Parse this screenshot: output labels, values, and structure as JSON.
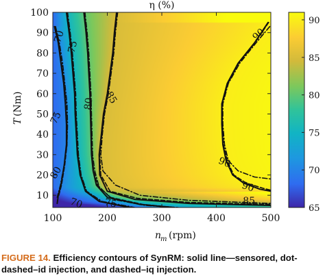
{
  "chart_data": {
    "type": "heatmap",
    "title": "η (%)",
    "xlabel": "n_m (rpm)",
    "ylabel": "T (Nm)",
    "xlim": [
      100,
      500
    ],
    "ylim": [
      4,
      100
    ],
    "x_ticks": [
      100,
      200,
      300,
      400,
      500
    ],
    "y_ticks": [
      10,
      20,
      30,
      40,
      50,
      60,
      70,
      80,
      90,
      100
    ],
    "colorbar": {
      "range": [
        65,
        91
      ],
      "ticks": [
        65,
        70,
        75,
        80,
        85,
        90
      ],
      "tick_labels": [
        "65",
        "70",
        "75",
        "80",
        "85",
        "90"
      ],
      "colormap": "parula"
    },
    "contour_levels": [
      70,
      75,
      80,
      85,
      90
    ],
    "series": [
      {
        "style": "solid",
        "contours": [
          {
            "level": 70,
            "points": [
              [
                103,
                93
              ],
              [
                110,
                85
              ],
              [
                115,
                75
              ],
              [
                120,
                65
              ],
              [
                123,
                55
              ],
              [
                125,
                45
              ],
              [
                125,
                35
              ],
              [
                121,
                25
              ],
              [
                115,
                15
              ],
              [
                110,
                10
              ],
              [
                108,
                6
              ]
            ]
          },
          {
            "level": 75,
            "points": [
              [
                125,
                100
              ],
              [
                130,
                90
              ],
              [
                134,
                80
              ],
              [
                137,
                70
              ],
              [
                140,
                60
              ],
              [
                141,
                50
              ],
              [
                143,
                40
              ],
              [
                145,
                30
              ],
              [
                150,
                20
              ],
              [
                160,
                12
              ],
              [
                185,
                7
              ],
              [
                240,
                4
              ]
            ]
          },
          {
            "level": 80,
            "points": [
              [
                157,
                100
              ],
              [
                161,
                90
              ],
              [
                164,
                80
              ],
              [
                166,
                70
              ],
              [
                168,
                60
              ],
              [
                169,
                50
              ],
              [
                170,
                40
              ],
              [
                171,
                30
              ],
              [
                174,
                22
              ],
              [
                180,
                15
              ],
              [
                200,
                9
              ],
              [
                260,
                5.5
              ],
              [
                320,
                4
              ]
            ]
          },
          {
            "level": 85,
            "points": [
              [
                217,
                100
              ],
              [
                213,
                90
              ],
              [
                210,
                80
              ],
              [
                205,
                70
              ],
              [
                200,
                60
              ],
              [
                193,
                50
              ],
              [
                189,
                40
              ],
              [
                185,
                30
              ],
              [
                186,
                20
              ],
              [
                200,
                12
              ],
              [
                250,
                8
              ],
              [
                350,
                6
              ],
              [
                500,
                5
              ]
            ]
          },
          {
            "level": 90,
            "points": [
              [
                495,
                95
              ],
              [
                470,
                85
              ],
              [
                440,
                75
              ],
              [
                420,
                65
              ],
              [
                410,
                55
              ],
              [
                410,
                45
              ],
              [
                412,
                35
              ],
              [
                418,
                27
              ],
              [
                430,
                20
              ],
              [
                450,
                16
              ],
              [
                480,
                13
              ],
              [
                500,
                12
              ]
            ]
          }
        ]
      },
      {
        "style": "dot-dashed",
        "contours": [
          {
            "level": 70,
            "points": [
              [
                105,
                93
              ],
              [
                112,
                85
              ],
              [
                118,
                75
              ],
              [
                122,
                65
              ],
              [
                126,
                55
              ],
              [
                127,
                45
              ],
              [
                126,
                35
              ],
              [
                121,
                25
              ],
              [
                114,
                15
              ],
              [
                108,
                9
              ]
            ]
          },
          {
            "level": 75,
            "points": [
              [
                127,
                100
              ],
              [
                132,
                90
              ],
              [
                136,
                80
              ],
              [
                139,
                70
              ],
              [
                142,
                60
              ],
              [
                143,
                50
              ],
              [
                145,
                40
              ],
              [
                147,
                30
              ],
              [
                152,
                20
              ],
              [
                162,
                12
              ],
              [
                190,
                7
              ],
              [
                250,
                4
              ]
            ]
          },
          {
            "level": 80,
            "points": [
              [
                159,
                100
              ],
              [
                163,
                90
              ],
              [
                166,
                80
              ],
              [
                168,
                70
              ],
              [
                170,
                60
              ],
              [
                171,
                50
              ],
              [
                172,
                40
              ],
              [
                173,
                30
              ],
              [
                177,
                22
              ],
              [
                185,
                14
              ],
              [
                210,
                8
              ],
              [
                270,
                5
              ],
              [
                330,
                4
              ]
            ]
          },
          {
            "level": 85,
            "points": [
              [
                219,
                100
              ],
              [
                215,
                90
              ],
              [
                212,
                80
              ],
              [
                207,
                70
              ],
              [
                202,
                60
              ],
              [
                195,
                50
              ],
              [
                191,
                40
              ],
              [
                188,
                30
              ],
              [
                192,
                22
              ],
              [
                215,
                15
              ],
              [
                260,
                10
              ],
              [
                350,
                7.5
              ],
              [
                500,
                6
              ]
            ]
          },
          {
            "level": 90,
            "points": [
              [
                498,
                93
              ],
              [
                473,
                85
              ],
              [
                443,
                75
              ],
              [
                422,
                65
              ],
              [
                412,
                55
              ],
              [
                412,
                45
              ],
              [
                415,
                35
              ],
              [
                422,
                27
              ],
              [
                440,
                22
              ],
              [
                470,
                19
              ],
              [
                500,
                18
              ]
            ]
          }
        ]
      },
      {
        "style": "dashed",
        "contours": [
          {
            "level": 70,
            "points": [
              [
                104,
                93
              ],
              [
                111,
                85
              ],
              [
                116,
                75
              ],
              [
                121,
                65
              ],
              [
                124,
                55
              ],
              [
                126,
                45
              ],
              [
                126,
                35
              ],
              [
                122,
                25
              ],
              [
                116,
                15
              ],
              [
                110,
                9
              ]
            ]
          },
          {
            "level": 75,
            "points": [
              [
                126,
                100
              ],
              [
                131,
                90
              ],
              [
                135,
                80
              ],
              [
                138,
                70
              ],
              [
                141,
                60
              ],
              [
                142,
                50
              ],
              [
                144,
                40
              ],
              [
                146,
                30
              ],
              [
                151,
                20
              ],
              [
                161,
                12
              ],
              [
                187,
                7
              ],
              [
                245,
                4
              ]
            ]
          },
          {
            "level": 80,
            "points": [
              [
                158,
                100
              ],
              [
                162,
                90
              ],
              [
                165,
                80
              ],
              [
                167,
                70
              ],
              [
                169,
                60
              ],
              [
                170,
                50
              ],
              [
                171,
                40
              ],
              [
                172,
                30
              ],
              [
                175,
                22
              ],
              [
                182,
                15
              ],
              [
                205,
                9
              ],
              [
                265,
                5.5
              ],
              [
                325,
                4
              ]
            ]
          },
          {
            "level": 85,
            "points": [
              [
                218,
                100
              ],
              [
                214,
                90
              ],
              [
                211,
                80
              ],
              [
                206,
                70
              ],
              [
                201,
                60
              ],
              [
                194,
                50
              ],
              [
                190,
                40
              ],
              [
                186,
                30
              ],
              [
                188,
                20
              ],
              [
                205,
                12
              ],
              [
                255,
                8.5
              ],
              [
                350,
                6.5
              ],
              [
                500,
                5.5
              ]
            ]
          },
          {
            "level": 90,
            "points": [
              [
                496,
                95
              ],
              [
                471,
                85
              ],
              [
                441,
                75
              ],
              [
                421,
                65
              ],
              [
                411,
                55
              ],
              [
                411,
                45
              ],
              [
                413,
                35
              ],
              [
                420,
                27
              ],
              [
                432,
                20
              ],
              [
                455,
                16
              ],
              [
                485,
                13.5
              ],
              [
                500,
                12.5
              ]
            ]
          }
        ]
      }
    ],
    "contour_labels": [
      {
        "text": "70",
        "x": 112,
        "y": 88,
        "angle": -72
      },
      {
        "text": "75",
        "x": 106,
        "y": 48,
        "angle": -65
      },
      {
        "text": "80",
        "x": 106,
        "y": 21,
        "angle": -60
      },
      {
        "text": "75",
        "x": 137,
        "y": 83,
        "angle": -76
      },
      {
        "text": "80",
        "x": 166,
        "y": 55,
        "angle": -82
      },
      {
        "text": "85",
        "x": 207,
        "y": 58,
        "angle": 60
      },
      {
        "text": "90",
        "x": 478,
        "y": 89,
        "angle": -42
      },
      {
        "text": "90",
        "x": 415,
        "y": 26,
        "angle": 22
      },
      {
        "text": "90",
        "x": 458,
        "y": 14,
        "angle": 18
      },
      {
        "text": "85",
        "x": 460,
        "y": 7,
        "angle": 0
      },
      {
        "text": "70",
        "x": 143,
        "y": 6,
        "angle": 20
      },
      {
        "text": "75",
        "x": 206,
        "y": 6,
        "angle": 12
      }
    ]
  },
  "caption": {
    "label": "FIGURE 14.",
    "text": "Efficiency contours of SynRM: solid line—sensored, dot-dashed–id injection, and dashed–iq injection."
  }
}
